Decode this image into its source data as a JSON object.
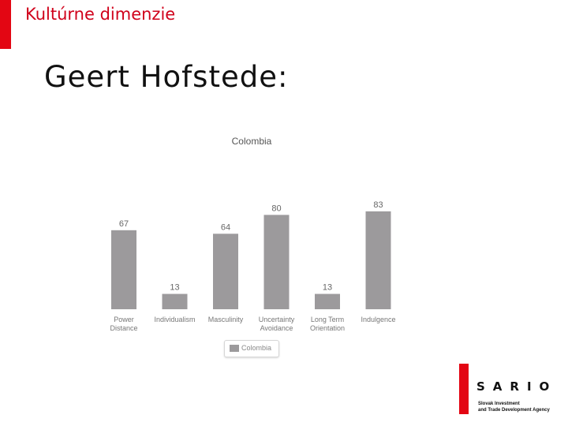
{
  "header": {
    "section_title": "Kultúrne dimenzie",
    "main_title": "Geert Hofstede:"
  },
  "colors": {
    "accent": "#e30613",
    "bar": "#9c9a9c",
    "title_red": "#d0021b"
  },
  "chart_data": {
    "type": "bar",
    "title": "Colombia",
    "categories": [
      [
        "Power",
        "Distance"
      ],
      [
        "Individualism"
      ],
      [
        "Masculinity"
      ],
      [
        "Uncertainty",
        "Avoidance"
      ],
      [
        "Long Term",
        "Orientation"
      ],
      [
        "Indulgence"
      ]
    ],
    "series": [
      {
        "name": "Colombia",
        "values": [
          67,
          13,
          64,
          80,
          13,
          83
        ]
      }
    ],
    "ylim": [
      0,
      100
    ],
    "grid": false,
    "legend": "bottom"
  },
  "logo": {
    "wordmark": "SARIO",
    "subtitle_line1": "Slovak Investment",
    "subtitle_line2": "and Trade Development Agency"
  }
}
